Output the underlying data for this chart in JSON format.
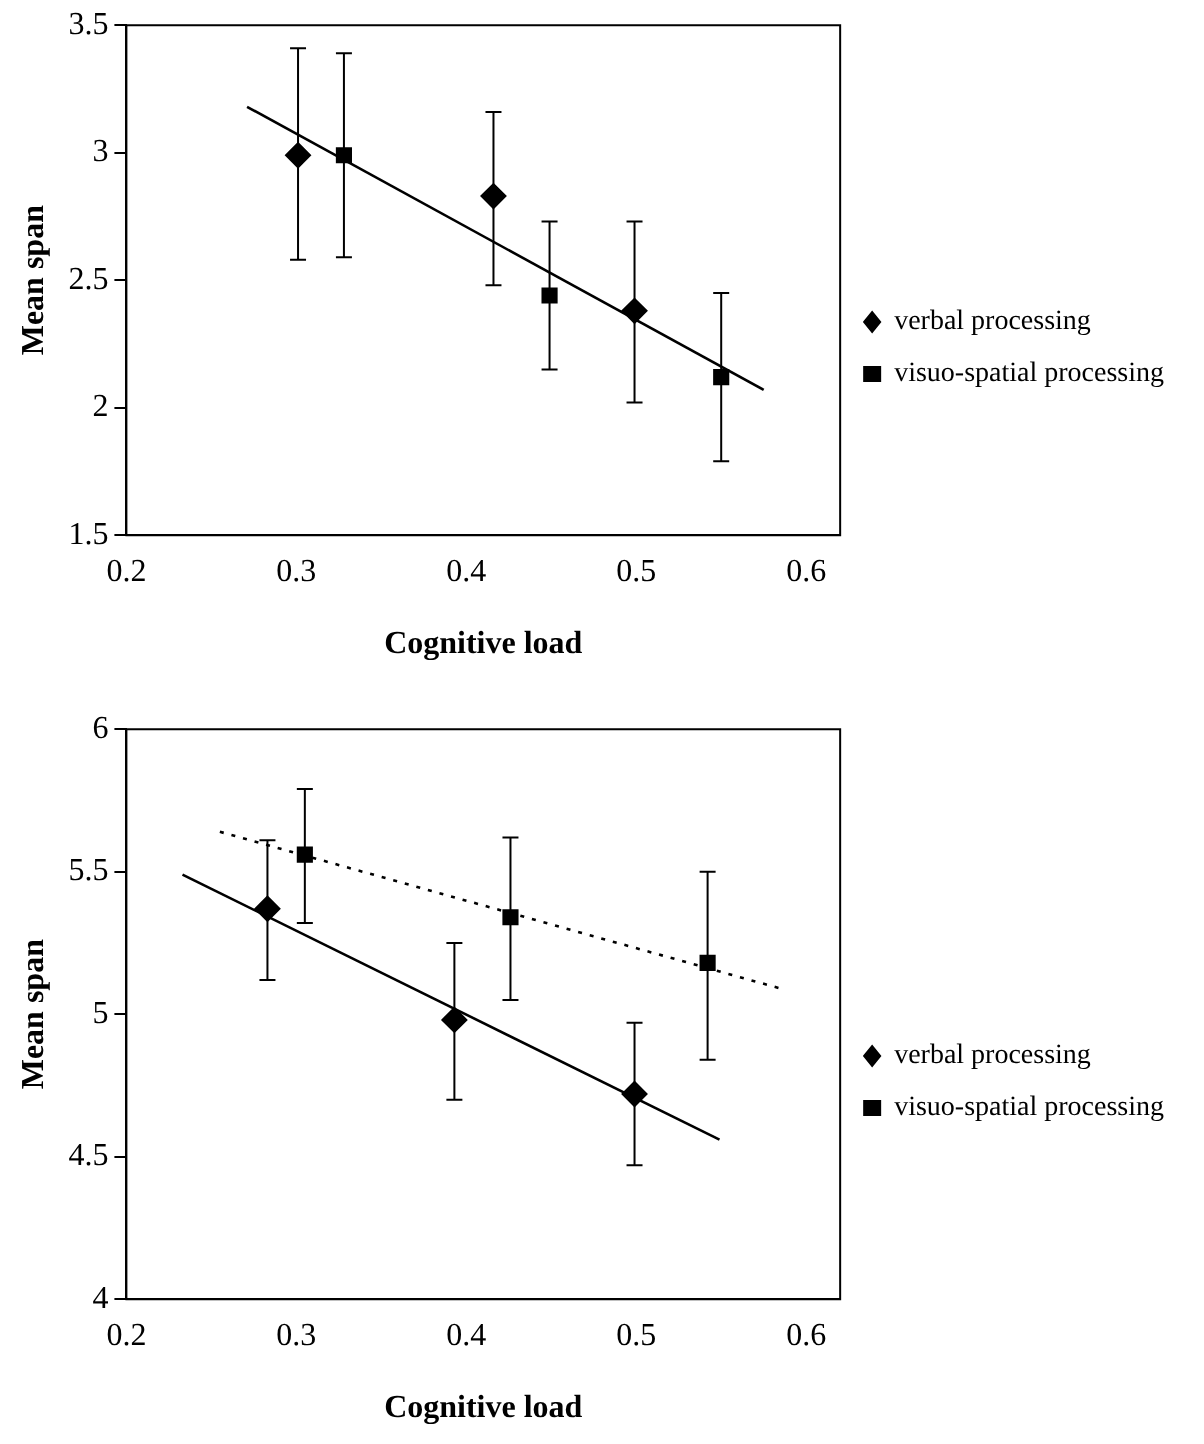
{
  "chart_data": [
    {
      "type": "scatter",
      "xlabel": "Cognitive load",
      "ylabel": "Mean span",
      "xlim": [
        0.2,
        0.62
      ],
      "ylim": [
        1.5,
        3.5
      ],
      "xticks": [
        0.2,
        0.3,
        0.4,
        0.5,
        0.6
      ],
      "yticks": [
        1.5,
        2,
        2.5,
        3,
        3.5
      ],
      "legend": "right",
      "series": [
        {
          "name": "verbal processing",
          "type": "scatter",
          "marker": "diamond",
          "color": "#000000",
          "x": [
            0.301,
            0.416,
            0.499
          ],
          "values": [
            2.99,
            2.83,
            2.38
          ],
          "errors": [
            [
              2.58,
              3.41
            ],
            [
              2.48,
              3.16
            ],
            [
              2.02,
              2.73
            ]
          ]
        },
        {
          "name": "visuo-spatial processing",
          "type": "scatter",
          "marker": "square",
          "color": "#000000",
          "x": [
            0.328,
            0.449,
            0.55
          ],
          "values": [
            2.99,
            2.44,
            2.12
          ],
          "errors": [
            [
              2.59,
              3.39
            ],
            [
              2.15,
              2.73
            ],
            [
              1.79,
              2.45
            ]
          ]
        },
        {
          "type": "line",
          "marker": "none",
          "line_style": "solid",
          "color": "#000000",
          "x": [
            0.271,
            0.575
          ],
          "values": [
            3.18,
            2.07
          ]
        }
      ]
    },
    {
      "type": "scatter",
      "xlabel": "Cognitive load",
      "ylabel": "Mean span",
      "xlim": [
        0.2,
        0.62
      ],
      "ylim": [
        4,
        6
      ],
      "xticks": [
        0.2,
        0.3,
        0.4,
        0.5,
        0.6
      ],
      "yticks": [
        4,
        4.5,
        5,
        5.5,
        6
      ],
      "legend": "right",
      "series": [
        {
          "name": "verbal processing",
          "type": "scatter",
          "marker": "diamond",
          "color": "#000000",
          "x": [
            0.283,
            0.393,
            0.499
          ],
          "values": [
            5.37,
            4.98,
            4.72
          ],
          "errors": [
            [
              5.12,
              5.61
            ],
            [
              4.7,
              5.25
            ],
            [
              4.47,
              4.97
            ]
          ]
        },
        {
          "name": "visuo-spatial processing",
          "type": "scatter",
          "marker": "square",
          "color": "#000000",
          "x": [
            0.305,
            0.426,
            0.542
          ],
          "values": [
            5.56,
            5.34,
            5.18
          ],
          "errors": [
            [
              5.32,
              5.79
            ],
            [
              5.05,
              5.62
            ],
            [
              4.84,
              5.5
            ]
          ]
        },
        {
          "type": "line",
          "marker": "none",
          "line_style": "solid",
          "color": "#000000",
          "x": [
            0.233,
            0.549
          ],
          "values": [
            5.49,
            4.56
          ]
        },
        {
          "type": "line",
          "marker": "none",
          "line_style": "dotted",
          "color": "#000000",
          "x": [
            0.255,
            0.585
          ],
          "values": [
            5.64,
            5.09
          ]
        }
      ]
    }
  ]
}
